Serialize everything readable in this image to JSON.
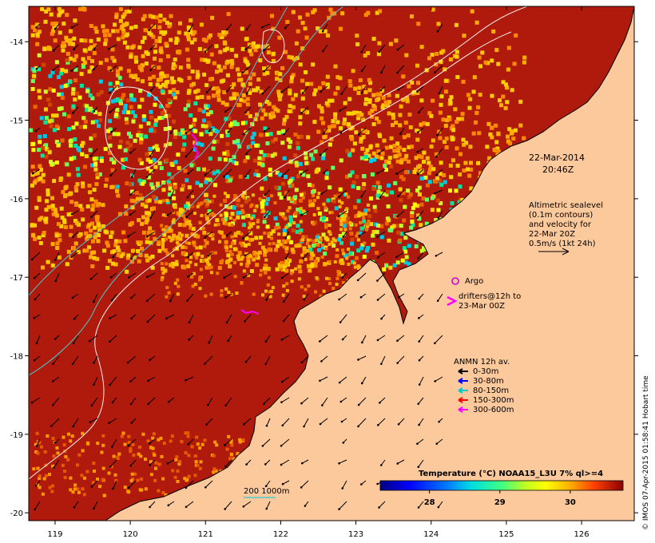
{
  "map": {
    "lon_ticks": [
      119,
      120,
      121,
      122,
      123,
      124,
      125,
      126
    ],
    "lat_ticks": [
      -14,
      -15,
      -16,
      -17,
      -18,
      -19,
      -20
    ],
    "lon_range": [
      118.65,
      126.7
    ],
    "lat_range": [
      -20.1,
      -13.55
    ]
  },
  "annotations": {
    "date": "22-Mar-2014",
    "time": "20:46Z",
    "altimetry": [
      "Altimetric sealevel",
      "(0.1m contours)",
      "and velocity for",
      "22-Mar 20Z",
      "0.5m/s (1kt 24h)"
    ],
    "argo_label": "Argo",
    "drifters": [
      "drifters@12h to",
      "23-Mar 00Z"
    ],
    "anmn_title": "ANMN 12h av.",
    "anmn_items": [
      {
        "label": "0-30m",
        "color": "#000000"
      },
      {
        "label": "30-80m",
        "color": "#0000ff"
      },
      {
        "label": "80-150m",
        "color": "#00c8c8"
      },
      {
        "label": "150-300m",
        "color": "#ff0000"
      },
      {
        "label": "300-600m",
        "color": "#ff00ff"
      }
    ],
    "depth_label": "200  1000m"
  },
  "colorbar": {
    "title": "Temperature (°C) NOAA15_L3U 7% ql>=4",
    "ticks": [
      28,
      29,
      30
    ],
    "range": [
      27.3,
      30.75
    ]
  },
  "credit": "© IMOS 07-Apr-2015 01:58:41 Hobart time",
  "colors": {
    "sea_hot": "#b01a0c",
    "land": "#fcc99c",
    "argo": "#d000d0",
    "contour_white": "#f4f4f4",
    "contour_cyan": "#4cc9c9"
  }
}
